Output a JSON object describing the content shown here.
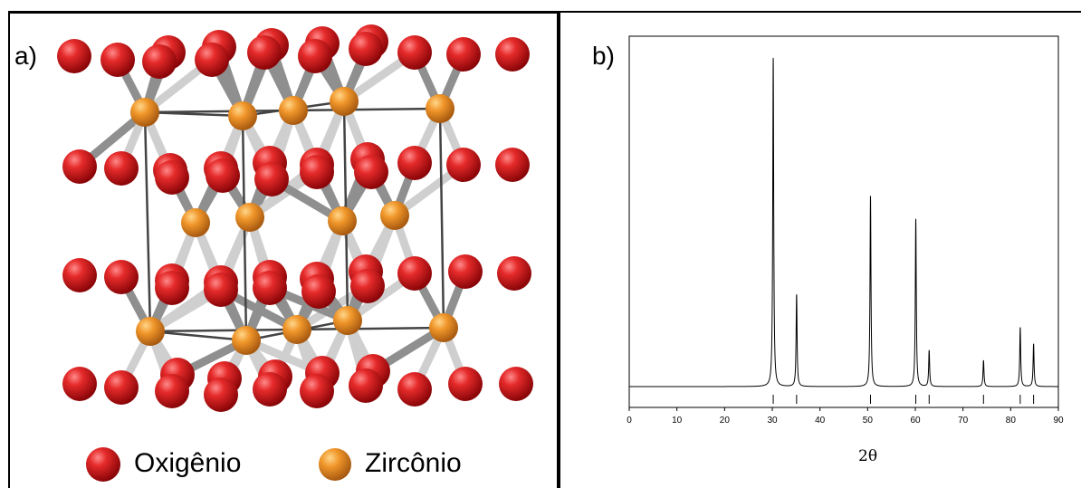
{
  "panel_a": {
    "label": "a)",
    "legend": [
      {
        "name": "Oxigênio",
        "color": "#d8141c"
      },
      {
        "name": "Zircônio",
        "color": "#f0962a"
      }
    ]
  },
  "panel_b": {
    "label": "b)"
  },
  "chart_data": {
    "type": "line",
    "title": "",
    "xlabel": "2θ",
    "ylabel": "",
    "xlim": [
      0,
      90
    ],
    "xticks": [
      0,
      10,
      20,
      30,
      40,
      50,
      60,
      70,
      80,
      90
    ],
    "grid": false,
    "series": [
      {
        "peaks": [
          {
            "x": 30.2,
            "y": 100
          },
          {
            "x": 35.1,
            "y": 28
          },
          {
            "x": 50.6,
            "y": 58
          },
          {
            "x": 60.1,
            "y": 51
          },
          {
            "x": 62.9,
            "y": 11
          },
          {
            "x": 74.3,
            "y": 8
          },
          {
            "x": 82.0,
            "y": 18
          },
          {
            "x": 84.8,
            "y": 13
          }
        ]
      }
    ],
    "reference_markers": [
      30.2,
      35.1,
      50.6,
      60.1,
      62.9,
      74.3,
      82.0,
      84.8
    ]
  }
}
